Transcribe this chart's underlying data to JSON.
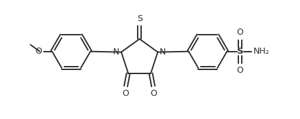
{
  "background": "#ffffff",
  "line_color": "#2d2d2d",
  "line_width": 1.4,
  "figsize": [
    4.39,
    1.75
  ],
  "dpi": 100,
  "xlim": [
    -4.5,
    5.2
  ],
  "ylim": [
    -1.8,
    2.0
  ]
}
